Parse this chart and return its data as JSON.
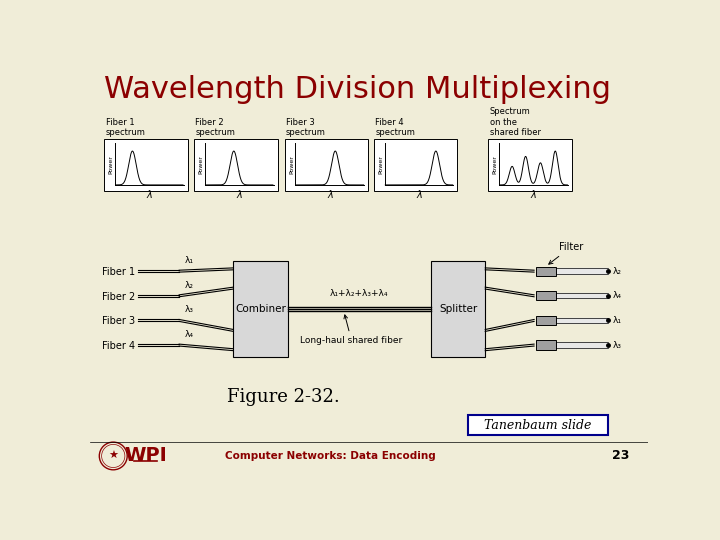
{
  "title": "Wavelength Division Multiplexing",
  "title_color": "#8B0000",
  "bg_color": "#F0EDD8",
  "figure_caption": "Figure 2-32.",
  "footer_text": "Computer Networks: Data Encoding",
  "page_number": "23",
  "tanenbaum_box": "Tanenbaum slide",
  "spectra_labels": [
    "Fiber 1\nspectrum",
    "Fiber 2\nspectrum",
    "Fiber 3\nspectrum",
    "Fiber 4\nspectrum",
    "Spectrum\non the\nshared fiber"
  ],
  "fiber_labels": [
    "Fiber 1",
    "Fiber 2",
    "Fiber 3",
    "Fiber 4"
  ],
  "lambda_labels": [
    "λ₁",
    "λ₂",
    "λ₃",
    "λ₄"
  ],
  "combiner_label": "Combiner",
  "splitter_label": "Splitter",
  "shared_fiber_label": "λ₁+λ₂+λ₃+λ₄",
  "long_haul_label": "Long-haul shared fiber",
  "filter_label": "Filter",
  "output_lambdas": [
    "λ₂",
    "λ₄",
    "λ₁",
    "λ₃"
  ]
}
